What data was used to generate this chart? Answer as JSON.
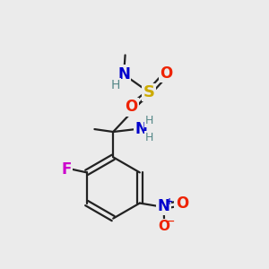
{
  "background_color": "#ebebeb",
  "bond_color": "#222222",
  "bond_width": 1.6,
  "elements": {
    "S": {
      "color": "#ccaa00",
      "fontsize": 13,
      "fontweight": "bold"
    },
    "O": {
      "color": "#ee2200",
      "fontsize": 12,
      "fontweight": "bold"
    },
    "N": {
      "color": "#0000cc",
      "fontsize": 12,
      "fontweight": "bold"
    },
    "H": {
      "color": "#558888",
      "fontsize": 10,
      "fontweight": "normal"
    },
    "F": {
      "color": "#cc00cc",
      "fontsize": 12,
      "fontweight": "bold"
    },
    "Nm": {
      "color": "#0000cc",
      "fontsize": 12,
      "fontweight": "bold"
    },
    "Om": {
      "color": "#ee2200",
      "fontsize": 11,
      "fontweight": "bold"
    }
  },
  "figsize": [
    3.0,
    3.0
  ],
  "dpi": 100
}
